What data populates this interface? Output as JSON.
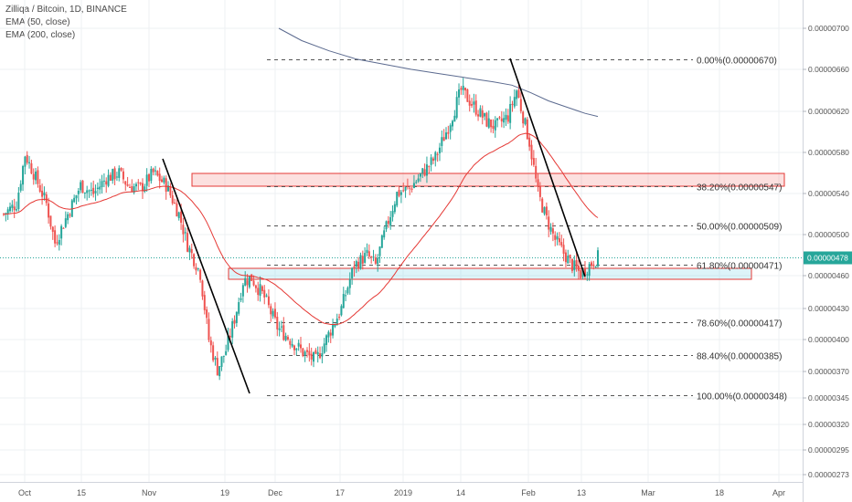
{
  "chart_data": {
    "type": "candlestick",
    "legend": {
      "title": "Zilliqa / Bitcoin, 1D, BINANCE",
      "ema50": "EMA (50, close)",
      "ema200": "EMA (200, close)"
    },
    "y_ticks": [
      "0.00000700",
      "0.00000660",
      "0.00000620",
      "0.00000580",
      "0.00000540",
      "0.00000500",
      "0.00000460",
      "0.00000430",
      "0.00000400",
      "0.00000370",
      "0.00000345",
      "0.00000320",
      "0.00000295",
      "0.00000273"
    ],
    "x_ticks": [
      "Oct",
      "15",
      "Nov",
      "19",
      "Dec",
      "17",
      "2019",
      "14",
      "Feb",
      "13",
      "Mar",
      "18",
      "Apr"
    ],
    "last_price": "0.00000478",
    "fib_levels": [
      {
        "label": "0.00%(0.00000670)",
        "value": 6.7e-06
      },
      {
        "label": "38.20%(0.00000547)",
        "value": 5.47e-06
      },
      {
        "label": "50.00%(0.00000509)",
        "value": 5.09e-06
      },
      {
        "label": "61.80%(0.00000471)",
        "value": 4.71e-06
      },
      {
        "label": "78.60%(0.00000417)",
        "value": 4.17e-06
      },
      {
        "label": "88.40%(0.00000385)",
        "value": 3.85e-06
      },
      {
        "label": "100.00%(0.00000348)",
        "value": 3.48e-06
      }
    ],
    "colors": {
      "up": "#26a69a",
      "down": "#ef5350",
      "ema50": "#e53935",
      "ema200": "#5b6a8f",
      "fib": "#555555",
      "zone": "#e53935"
    }
  }
}
